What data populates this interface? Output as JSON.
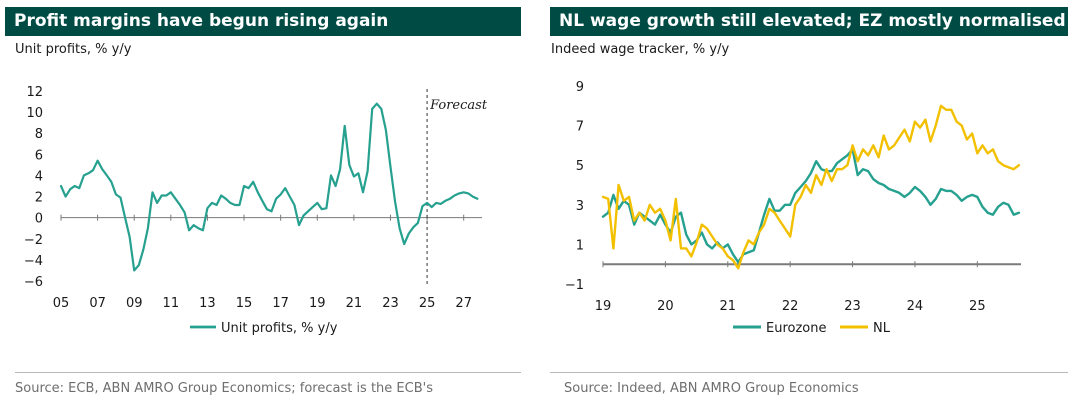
{
  "left": {
    "title": "Profit margins have begun rising again",
    "subtitle": "Unit profits, % y/y",
    "source": "Source: ECB, ABN AMRO Group Economics; forecast is the ECB's"
  },
  "right": {
    "title": "NL wage growth still elevated; EZ mostly normalised",
    "subtitle": "Indeed wage tracker, % y/y",
    "source": "Source: Indeed, ABN AMRO Group Economics"
  },
  "chart_data": [
    {
      "type": "line",
      "title": "Profit margins have begun rising again",
      "ylabel": "Unit profits, % y/y",
      "xlabel": "",
      "ylim": [
        -6,
        12
      ],
      "xlim": [
        2005,
        2028
      ],
      "yticks": [
        -6,
        -4,
        -2,
        0,
        2,
        4,
        6,
        8,
        10,
        12
      ],
      "xticks": [
        2005,
        2007,
        2009,
        2011,
        2013,
        2015,
        2017,
        2019,
        2021,
        2023,
        2025,
        2027
      ],
      "xtick_labels": [
        "05",
        "07",
        "09",
        "11",
        "13",
        "15",
        "17",
        "19",
        "21",
        "23",
        "25",
        "27"
      ],
      "annotation": "Forecast",
      "forecast_start": 2025,
      "legend_position": "bottom",
      "color": "#26a08f",
      "series": [
        {
          "name": "Unit profits, % y/y",
          "x": [
            2005,
            2005.25,
            2005.5,
            2005.75,
            2006,
            2006.25,
            2006.5,
            2006.75,
            2007,
            2007.25,
            2007.5,
            2007.75,
            2008,
            2008.25,
            2008.5,
            2008.75,
            2009,
            2009.25,
            2009.5,
            2009.75,
            2010,
            2010.25,
            2010.5,
            2010.75,
            2011,
            2011.25,
            2011.5,
            2011.75,
            2012,
            2012.25,
            2012.5,
            2012.75,
            2013,
            2013.25,
            2013.5,
            2013.75,
            2014,
            2014.25,
            2014.5,
            2014.75,
            2015,
            2015.25,
            2015.5,
            2015.75,
            2016,
            2016.25,
            2016.5,
            2016.75,
            2017,
            2017.25,
            2017.5,
            2017.75,
            2018,
            2018.25,
            2018.5,
            2018.75,
            2019,
            2019.25,
            2019.5,
            2019.75,
            2020,
            2020.25,
            2020.5,
            2020.75,
            2021,
            2021.25,
            2021.5,
            2021.75,
            2022,
            2022.25,
            2022.5,
            2022.75,
            2023,
            2023.25,
            2023.5,
            2023.75,
            2024,
            2024.25,
            2024.5,
            2024.75,
            2025,
            2025.25,
            2025.5,
            2025.75,
            2026,
            2026.25,
            2026.5,
            2026.75,
            2027,
            2027.25,
            2027.5,
            2027.75
          ],
          "values": [
            3.0,
            2.0,
            2.7,
            3.0,
            2.8,
            4.0,
            4.2,
            4.5,
            5.4,
            4.6,
            4.0,
            3.4,
            2.2,
            1.9,
            0.0,
            -1.8,
            -5.0,
            -4.5,
            -3.0,
            -1.0,
            2.4,
            1.4,
            2.1,
            2.1,
            2.4,
            1.8,
            1.2,
            0.5,
            -1.2,
            -0.7,
            -1.0,
            -1.2,
            0.9,
            1.4,
            1.2,
            2.1,
            1.8,
            1.4,
            1.2,
            1.2,
            3.0,
            2.8,
            3.4,
            2.4,
            1.6,
            0.8,
            0.6,
            1.8,
            2.2,
            2.8,
            2.0,
            1.2,
            -0.7,
            0.2,
            0.6,
            1.0,
            1.4,
            0.8,
            0.9,
            4.0,
            3.0,
            4.6,
            8.7,
            5.0,
            3.9,
            4.2,
            2.4,
            4.4,
            10.3,
            10.8,
            10.3,
            8.3,
            4.8,
            1.5,
            -1.0,
            -2.5,
            -1.5,
            -0.9,
            -0.5,
            1.1,
            1.4,
            1.0,
            1.4,
            1.3,
            1.6,
            1.8,
            2.1,
            2.3,
            2.4,
            2.3,
            2.0,
            1.8
          ]
        }
      ]
    },
    {
      "type": "line",
      "title": "NL wage growth still elevated; EZ mostly normalised",
      "ylabel": "Indeed wage tracker, % y/y",
      "xlabel": "",
      "ylim": [
        -1,
        9
      ],
      "xlim": [
        2019,
        2025.7
      ],
      "yticks": [
        -1,
        1,
        3,
        5,
        7,
        9
      ],
      "xticks": [
        2019,
        2020,
        2021,
        2022,
        2023,
        2024,
        2025
      ],
      "xtick_labels": [
        "19",
        "20",
        "21",
        "22",
        "23",
        "24",
        "25"
      ],
      "legend_position": "bottom",
      "series": [
        {
          "name": "Eurozone",
          "color": "#26a08f",
          "x": [
            2019,
            2019.083,
            2019.167,
            2019.25,
            2019.333,
            2019.417,
            2019.5,
            2019.583,
            2019.667,
            2019.75,
            2019.833,
            2019.917,
            2020,
            2020.083,
            2020.167,
            2020.25,
            2020.333,
            2020.417,
            2020.5,
            2020.583,
            2020.667,
            2020.75,
            2020.833,
            2020.917,
            2021,
            2021.083,
            2021.167,
            2021.25,
            2021.333,
            2021.417,
            2021.5,
            2021.583,
            2021.667,
            2021.75,
            2021.833,
            2021.917,
            2022,
            2022.083,
            2022.167,
            2022.25,
            2022.333,
            2022.417,
            2022.5,
            2022.583,
            2022.667,
            2022.75,
            2022.833,
            2022.917,
            2023,
            2023.083,
            2023.167,
            2023.25,
            2023.333,
            2023.417,
            2023.5,
            2023.583,
            2023.667,
            2023.75,
            2023.833,
            2023.917,
            2024,
            2024.083,
            2024.167,
            2024.25,
            2024.333,
            2024.417,
            2024.5,
            2024.583,
            2024.667,
            2024.75,
            2024.833,
            2024.917,
            2025,
            2025.083,
            2025.167,
            2025.25,
            2025.333,
            2025.417,
            2025.5,
            2025.583,
            2025.667
          ],
          "values": [
            2.4,
            2.6,
            3.5,
            2.8,
            3.2,
            3.0,
            2.0,
            2.6,
            2.4,
            2.2,
            2.0,
            2.5,
            2.0,
            1.6,
            2.4,
            2.6,
            1.5,
            1.0,
            1.2,
            1.6,
            1.0,
            0.8,
            1.1,
            0.8,
            1.0,
            0.5,
            0.1,
            0.5,
            0.6,
            0.7,
            1.6,
            2.5,
            3.3,
            2.7,
            2.7,
            3.0,
            3.0,
            3.6,
            3.9,
            4.2,
            4.6,
            5.2,
            4.8,
            4.7,
            4.7,
            5.1,
            5.3,
            5.5,
            5.8,
            4.5,
            4.8,
            4.7,
            4.3,
            4.1,
            4.0,
            3.8,
            3.7,
            3.6,
            3.4,
            3.6,
            3.9,
            3.7,
            3.4,
            3.0,
            3.3,
            3.8,
            3.7,
            3.7,
            3.5,
            3.2,
            3.4,
            3.5,
            3.4,
            2.9,
            2.6,
            2.5,
            2.9,
            3.1,
            3.0,
            2.5,
            2.6
          ]
        },
        {
          "name": "NL",
          "color": "#f3c000",
          "x": [
            2019,
            2019.083,
            2019.167,
            2019.25,
            2019.333,
            2019.417,
            2019.5,
            2019.583,
            2019.667,
            2019.75,
            2019.833,
            2019.917,
            2020,
            2020.083,
            2020.167,
            2020.25,
            2020.333,
            2020.417,
            2020.5,
            2020.583,
            2020.667,
            2020.75,
            2020.833,
            2020.917,
            2021,
            2021.083,
            2021.167,
            2021.25,
            2021.333,
            2021.417,
            2021.5,
            2021.583,
            2021.667,
            2021.75,
            2021.833,
            2021.917,
            2022,
            2022.083,
            2022.167,
            2022.25,
            2022.333,
            2022.417,
            2022.5,
            2022.583,
            2022.667,
            2022.75,
            2022.833,
            2022.917,
            2023,
            2023.083,
            2023.167,
            2023.25,
            2023.333,
            2023.417,
            2023.5,
            2023.583,
            2023.667,
            2023.75,
            2023.833,
            2023.917,
            2024,
            2024.083,
            2024.167,
            2024.25,
            2024.333,
            2024.417,
            2024.5,
            2024.583,
            2024.667,
            2024.75,
            2024.833,
            2024.917,
            2025,
            2025.083,
            2025.167,
            2025.25,
            2025.333,
            2025.417,
            2025.5,
            2025.583,
            2025.667
          ],
          "values": [
            3.4,
            3.3,
            0.8,
            4.0,
            3.2,
            3.4,
            2.2,
            2.6,
            2.2,
            3.0,
            2.6,
            2.8,
            2.2,
            1.2,
            3.3,
            0.8,
            0.8,
            0.4,
            1.1,
            2.0,
            1.8,
            1.4,
            1.0,
            0.8,
            0.4,
            0.2,
            -0.2,
            0.6,
            1.2,
            1.0,
            1.6,
            2.0,
            2.8,
            2.6,
            2.2,
            1.8,
            1.4,
            3.0,
            3.4,
            4.0,
            3.6,
            4.5,
            4.0,
            4.8,
            4.2,
            4.8,
            4.8,
            5.0,
            6.0,
            5.2,
            5.8,
            5.5,
            6.0,
            5.4,
            6.5,
            5.8,
            6.0,
            6.4,
            6.8,
            6.2,
            7.2,
            6.9,
            7.3,
            6.2,
            7.0,
            8.0,
            7.8,
            7.8,
            7.2,
            7.0,
            6.3,
            6.6,
            5.6,
            6.0,
            5.6,
            5.8,
            5.2,
            5.0,
            4.9,
            4.8,
            5.0
          ]
        }
      ]
    }
  ]
}
